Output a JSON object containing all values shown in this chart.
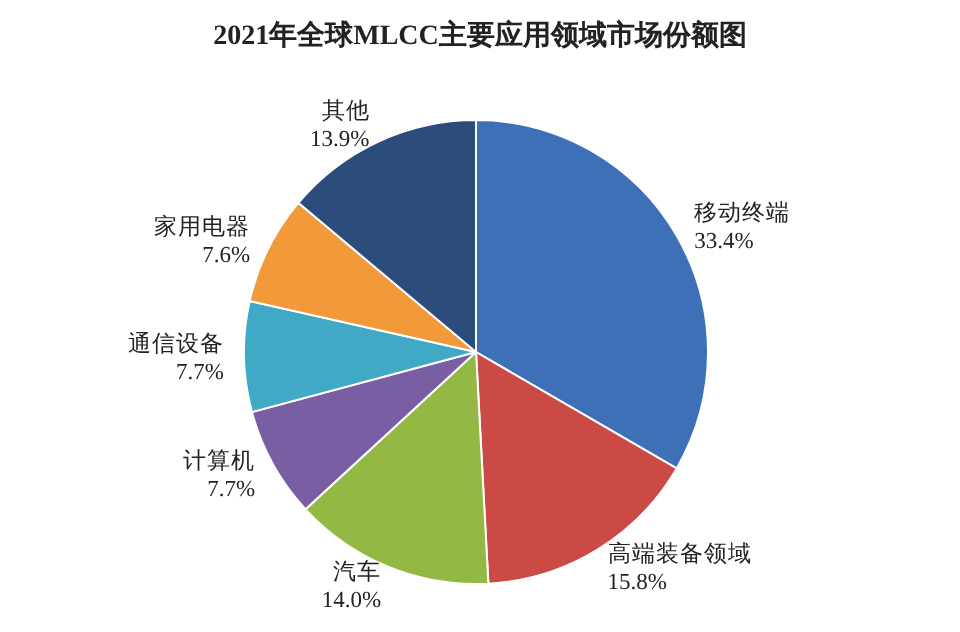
{
  "chart_data": {
    "type": "pie",
    "title": "2021年全球MLCC主要应用领域市场份额图",
    "categories": [
      "移动终端",
      "高端装备领域",
      "汽车",
      "计算机",
      "通信设备",
      "家用电器",
      "其他"
    ],
    "values": [
      33.4,
      15.8,
      14.0,
      7.7,
      7.7,
      7.6,
      13.9
    ],
    "value_labels": [
      "33.4%",
      "15.8%",
      "14.0%",
      "7.7%",
      "7.7%",
      "7.6%",
      "13.9%"
    ],
    "colors": [
      "#3e70b8",
      "#cc4a45",
      "#93b843",
      "#7a5ea3",
      "#3fa9c6",
      "#f29a3a",
      "#2c4c7c"
    ]
  }
}
